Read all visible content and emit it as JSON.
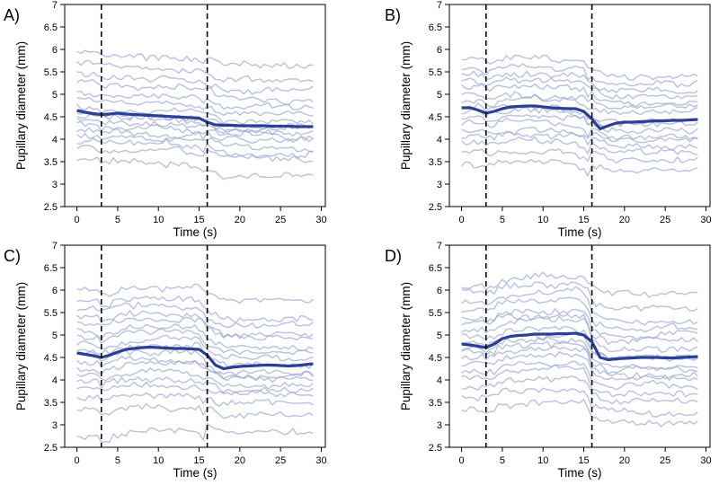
{
  "chart_data": [
    {
      "type": "line",
      "panel_label": "A)",
      "xlabel": "Time (s)",
      "ylabel": "Pupillary diameter (mm)",
      "xlim": [
        -1.5,
        30.5
      ],
      "ylim": [
        2.5,
        7.0
      ],
      "xticks": [
        0,
        5,
        10,
        15,
        20,
        25,
        30
      ],
      "yticks": [
        2.5,
        3.0,
        3.5,
        4.0,
        4.5,
        5.0,
        5.5,
        6.0,
        6.5,
        7.0
      ],
      "vlines": [
        3,
        16
      ],
      "colors": {
        "mean": "#2b3f96",
        "individual": "#9aa6d2",
        "vline": "#000000"
      },
      "mean_series": {
        "name": "mean",
        "x": [
          0,
          1,
          2,
          3,
          4,
          5,
          6,
          7,
          8,
          9,
          10,
          11,
          12,
          13,
          14,
          15,
          16,
          17,
          18,
          19,
          20,
          21,
          22,
          23,
          24,
          25,
          26,
          27,
          28,
          29
        ],
        "values": [
          4.64,
          4.6,
          4.57,
          4.55,
          4.56,
          4.58,
          4.56,
          4.55,
          4.54,
          4.53,
          4.52,
          4.51,
          4.5,
          4.49,
          4.48,
          4.47,
          4.38,
          4.32,
          4.31,
          4.31,
          4.3,
          4.3,
          4.3,
          4.3,
          4.29,
          4.29,
          4.29,
          4.28,
          4.28,
          4.28
        ]
      },
      "subject_count": 16,
      "subject_baselines_pre": [
        3.55,
        3.8,
        3.95,
        4.1,
        4.2,
        4.35,
        4.45,
        4.55,
        4.6,
        4.75,
        4.9,
        5.05,
        5.25,
        5.45,
        5.7,
        5.9
      ],
      "subject_baselines_post": [
        3.2,
        3.55,
        3.7,
        3.85,
        3.95,
        4.05,
        4.15,
        4.25,
        4.3,
        4.45,
        4.6,
        4.75,
        4.9,
        5.1,
        5.35,
        5.65
      ]
    },
    {
      "type": "line",
      "panel_label": "B)",
      "xlabel": "Time (s)",
      "ylabel": "Pupillary diameter (mm)",
      "xlim": [
        -1.5,
        30.5
      ],
      "ylim": [
        2.5,
        7.0
      ],
      "xticks": [
        0,
        5,
        10,
        15,
        20,
        25,
        30
      ],
      "yticks": [
        2.5,
        3.0,
        3.5,
        4.0,
        4.5,
        5.0,
        5.5,
        6.0,
        6.5,
        7.0
      ],
      "vlines": [
        3,
        16
      ],
      "colors": {
        "mean": "#2b3f96",
        "individual": "#9aa6d2",
        "vline": "#000000"
      },
      "mean_series": {
        "name": "mean",
        "x": [
          0,
          1,
          2,
          3,
          4,
          5,
          6,
          7,
          8,
          9,
          10,
          11,
          12,
          13,
          14,
          15,
          16,
          17,
          18,
          19,
          20,
          21,
          22,
          23,
          24,
          25,
          26,
          27,
          28,
          29
        ],
        "values": [
          4.7,
          4.7,
          4.65,
          4.58,
          4.62,
          4.68,
          4.72,
          4.73,
          4.74,
          4.74,
          4.72,
          4.7,
          4.69,
          4.68,
          4.68,
          4.62,
          4.45,
          4.23,
          4.3,
          4.36,
          4.38,
          4.38,
          4.39,
          4.4,
          4.41,
          4.41,
          4.42,
          4.42,
          4.43,
          4.44
        ]
      },
      "subject_count": 16,
      "subject_baselines_pre": [
        3.45,
        3.7,
        3.9,
        4.05,
        4.2,
        4.35,
        4.5,
        4.6,
        4.7,
        4.85,
        5.0,
        5.15,
        5.3,
        5.45,
        5.6,
        5.75
      ],
      "subject_baselines_post": [
        3.3,
        3.55,
        3.7,
        3.85,
        4.0,
        4.1,
        4.2,
        4.3,
        4.4,
        4.55,
        4.7,
        4.8,
        4.95,
        5.1,
        5.25,
        5.4
      ]
    },
    {
      "type": "line",
      "panel_label": "C)",
      "xlabel": "Time (s)",
      "ylabel": "Pupillary diameter (mm)",
      "xlim": [
        -1.5,
        30.5
      ],
      "ylim": [
        2.5,
        7.0
      ],
      "xticks": [
        0,
        5,
        10,
        15,
        20,
        25,
        30
      ],
      "yticks": [
        2.5,
        3.0,
        3.5,
        4.0,
        4.5,
        5.0,
        5.5,
        6.0,
        6.5,
        7.0
      ],
      "vlines": [
        3,
        16
      ],
      "colors": {
        "mean": "#2b3f96",
        "individual": "#9aa6d2",
        "vline": "#000000"
      },
      "mean_series": {
        "name": "mean",
        "x": [
          0,
          1,
          2,
          3,
          4,
          5,
          6,
          7,
          8,
          9,
          10,
          11,
          12,
          13,
          14,
          15,
          16,
          17,
          18,
          19,
          20,
          21,
          22,
          23,
          24,
          25,
          26,
          27,
          28,
          29
        ],
        "values": [
          4.6,
          4.57,
          4.54,
          4.5,
          4.55,
          4.62,
          4.68,
          4.7,
          4.72,
          4.73,
          4.72,
          4.71,
          4.7,
          4.7,
          4.69,
          4.68,
          4.55,
          4.33,
          4.25,
          4.28,
          4.3,
          4.31,
          4.32,
          4.33,
          4.33,
          4.32,
          4.31,
          4.32,
          4.34,
          4.36
        ]
      },
      "subject_count": 18,
      "subject_baselines_pre": [
        2.7,
        3.3,
        3.6,
        3.8,
        3.95,
        4.1,
        4.25,
        4.4,
        4.55,
        4.65,
        4.8,
        4.95,
        5.1,
        5.25,
        5.4,
        5.55,
        5.75,
        6.0
      ],
      "subject_baselines_post": [
        2.9,
        3.2,
        3.5,
        3.65,
        3.8,
        3.9,
        4.0,
        4.1,
        4.2,
        4.3,
        4.45,
        4.6,
        4.75,
        4.9,
        5.05,
        5.2,
        5.4,
        5.75
      ]
    },
    {
      "type": "line",
      "panel_label": "D)",
      "xlabel": "Time (s)",
      "ylabel": "Pupillary diameter (mm)",
      "xlim": [
        -1.5,
        30.5
      ],
      "ylim": [
        2.5,
        7.0
      ],
      "xticks": [
        0,
        5,
        10,
        15,
        20,
        25,
        30
      ],
      "yticks": [
        2.5,
        3.0,
        3.5,
        4.0,
        4.5,
        5.0,
        5.5,
        6.0,
        6.5,
        7.0
      ],
      "vlines": [
        3,
        16
      ],
      "colors": {
        "mean": "#2b3f96",
        "individual": "#9aa6d2",
        "vline": "#000000"
      },
      "mean_series": {
        "name": "mean",
        "x": [
          0,
          1,
          2,
          3,
          4,
          5,
          6,
          7,
          8,
          9,
          10,
          11,
          12,
          13,
          14,
          15,
          16,
          17,
          18,
          19,
          20,
          21,
          22,
          23,
          24,
          25,
          26,
          27,
          28,
          29
        ],
        "values": [
          4.8,
          4.78,
          4.75,
          4.72,
          4.8,
          4.92,
          4.97,
          4.99,
          5.0,
          5.02,
          5.02,
          5.02,
          5.03,
          5.03,
          5.04,
          5.0,
          4.85,
          4.5,
          4.45,
          4.47,
          4.48,
          4.49,
          4.5,
          4.5,
          4.5,
          4.49,
          4.49,
          4.5,
          4.51,
          4.52
        ]
      },
      "subject_count": 18,
      "subject_baselines_pre": [
        3.3,
        3.6,
        3.85,
        4.05,
        4.2,
        4.35,
        4.5,
        4.6,
        4.7,
        4.8,
        4.95,
        5.1,
        5.25,
        5.4,
        5.55,
        5.75,
        5.95,
        6.1
      ],
      "subject_baselines_post": [
        3.0,
        3.25,
        3.5,
        3.7,
        3.85,
        4.0,
        4.1,
        4.2,
        4.3,
        4.45,
        4.55,
        4.7,
        4.85,
        5.0,
        5.15,
        5.3,
        5.6,
        5.95
      ]
    }
  ]
}
